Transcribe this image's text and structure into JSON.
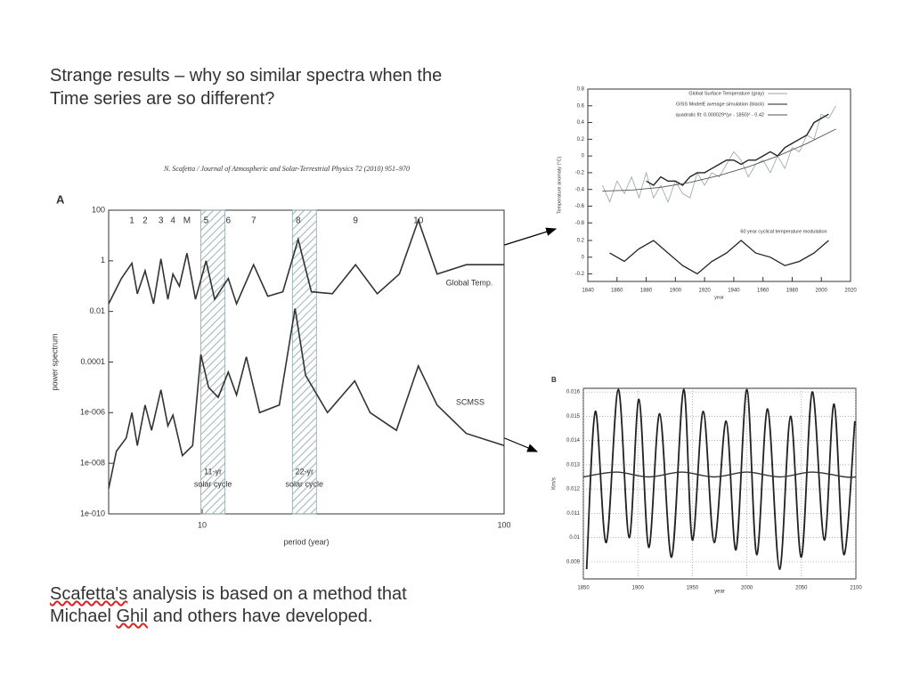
{
  "slide": {
    "title": [
      "Strange results – why so similar spectra when the",
      "Time series are so different?"
    ],
    "footer": [
      [
        "Scafetta's",
        " analysis is based on a method that"
      ],
      [
        "Michael ",
        "Ghil",
        " and others have developed."
      ]
    ]
  },
  "chart_data": [
    {
      "type": "line",
      "source": "N. Scafetta / Journal of Atmospheric and Solar-Terrestrial Physics 72 (2010) 951–970",
      "panel_label": "A",
      "xlabel": "period (year)",
      "ylabel": "power spectrum",
      "xlog": true,
      "ylog": true,
      "xlim": [
        4.9,
        100
      ],
      "ylim": [
        1e-10,
        100
      ],
      "xticks": [
        10,
        100
      ],
      "yticks": [
        100,
        1,
        0.01,
        0.0001,
        {
          "value": 1e-06,
          "label": "1e-006"
        },
        {
          "value": 1e-08,
          "label": "1e-008"
        },
        {
          "value": 1e-10,
          "label": "1e-010"
        }
      ],
      "peaks": [
        {
          "label": "1",
          "x": 5.85
        },
        {
          "label": "2",
          "x": 6.47
        },
        {
          "label": "3",
          "x": 7.3
        },
        {
          "label": "4",
          "x": 8.0
        },
        {
          "label": "M",
          "x": 8.9
        },
        {
          "label": "5",
          "x": 10.3
        },
        {
          "label": "6",
          "x": 12.2
        },
        {
          "label": "7",
          "x": 14.8
        },
        {
          "label": "8",
          "x": 20.8
        },
        {
          "label": "9",
          "x": 32.2
        },
        {
          "label": "10",
          "x": 52
        }
      ],
      "bands": [
        {
          "label": [
            "11-yr",
            "solar cycle"
          ],
          "range": [
            9.9,
            11.9
          ]
        },
        {
          "label": [
            "22-yr",
            "solar cycle"
          ],
          "range": [
            19.9,
            23.9
          ]
        }
      ],
      "series": [
        {
          "name": "Global Temp.",
          "color": "#333333",
          "x": [
            4.9,
            5.4,
            5.85,
            6.1,
            6.47,
            6.9,
            7.3,
            7.7,
            8.0,
            8.4,
            8.9,
            9.5,
            10.3,
            11,
            12.2,
            13,
            14.8,
            16.5,
            18.5,
            20.8,
            23,
            27,
            32.2,
            38,
            45,
            52,
            60,
            75,
            100
          ],
          "values": [
            0.02,
            0.2,
            0.8,
            0.05,
            0.4,
            0.02,
            1.2,
            0.03,
            0.3,
            0.1,
            2,
            0.03,
            1,
            0.03,
            0.2,
            0.02,
            0.7,
            0.04,
            0.06,
            7,
            0.06,
            0.05,
            0.7,
            0.05,
            0.3,
            40,
            0.3,
            0.7,
            0.7
          ]
        },
        {
          "name": "SCMSS",
          "color": "#333333",
          "x": [
            4.9,
            5.2,
            5.6,
            5.85,
            6.1,
            6.47,
            6.8,
            7.3,
            7.7,
            8.0,
            8.6,
            9.3,
            9.9,
            10.5,
            11.3,
            12.2,
            13,
            14,
            15.5,
            18,
            20.3,
            22,
            26,
            32,
            36,
            44,
            52,
            60,
            75,
            100
          ],
          "values": [
            1e-09,
            3e-08,
            1e-07,
            1e-06,
            5e-08,
            2e-06,
            2e-07,
            8e-06,
            3e-07,
            8e-07,
            2e-08,
            5e-08,
            0.0002,
            1e-05,
            4e-06,
            4e-05,
            5e-06,
            0.00016,
            1e-06,
            2e-06,
            0.013,
            3e-05,
            1e-06,
            1.8e-05,
            1e-06,
            2e-07,
            7e-05,
            2e-06,
            1.5e-07,
            5e-08
          ]
        }
      ]
    },
    {
      "type": "line",
      "xlabel": "year",
      "ylabel": "Temperature anomaly (°C)",
      "xlim": [
        1840,
        2020
      ],
      "ylim": [
        -1.5,
        0.8
      ],
      "y2lim": [
        -0.29,
        2.01
      ],
      "xticks": [
        1840,
        1860,
        1880,
        1900,
        1920,
        1940,
        1960,
        1980,
        2000,
        2020
      ],
      "yticks": [
        -0.8,
        -0.6,
        -0.4,
        -0.2,
        0,
        0.2,
        0.4,
        0.6,
        0.8
      ],
      "y2ticks": [
        -0.2,
        0,
        0.2
      ],
      "series": [
        {
          "name": "Global Surface Temperature (gray)",
          "color": "#93a5a0",
          "x": [
            1850,
            1855,
            1860,
            1865,
            1870,
            1875,
            1880,
            1885,
            1890,
            1895,
            1900,
            1905,
            1910,
            1915,
            1920,
            1925,
            1930,
            1935,
            1940,
            1945,
            1950,
            1955,
            1960,
            1965,
            1970,
            1975,
            1980,
            1985,
            1990,
            1995,
            2000,
            2005,
            2010
          ],
          "values": [
            -0.35,
            -0.55,
            -0.3,
            -0.45,
            -0.25,
            -0.5,
            -0.2,
            -0.5,
            -0.35,
            -0.55,
            -0.3,
            -0.45,
            -0.5,
            -0.2,
            -0.35,
            -0.2,
            -0.25,
            -0.1,
            0.05,
            -0.05,
            -0.25,
            -0.1,
            -0.05,
            -0.2,
            0,
            -0.15,
            0.1,
            0.05,
            0.25,
            0.2,
            0.5,
            0.45,
            0.6
          ]
        },
        {
          "name": "GISS ModelE average simulation (black)",
          "color": "#222222",
          "x": [
            1880,
            1885,
            1890,
            1895,
            1900,
            1905,
            1910,
            1915,
            1920,
            1925,
            1930,
            1935,
            1940,
            1945,
            1950,
            1955,
            1960,
            1965,
            1970,
            1975,
            1980,
            1985,
            1990,
            1995,
            2000,
            2005
          ],
          "values": [
            -0.3,
            -0.35,
            -0.25,
            -0.3,
            -0.3,
            -0.35,
            -0.25,
            -0.2,
            -0.2,
            -0.15,
            -0.1,
            -0.05,
            -0.05,
            -0.1,
            -0.05,
            -0.05,
            0,
            0.05,
            0,
            0.1,
            0.15,
            0.2,
            0.25,
            0.4,
            0.45,
            0.5
          ]
        },
        {
          "name": "quadratic fit: 0.000029*(yr - 1850)² - 0.42",
          "color": "#555555",
          "x": [
            1850,
            1870,
            1890,
            1910,
            1930,
            1950,
            1970,
            1990,
            2010
          ],
          "values": [
            -0.42,
            -0.408,
            -0.374,
            -0.316,
            -0.234,
            -0.13,
            -0.002,
            0.148,
            0.322
          ]
        },
        {
          "name": "60 year cyclical temperature modulation",
          "color": "#222222",
          "axis": "y2",
          "x": [
            1855,
            1865,
            1875,
            1885,
            1895,
            1905,
            1915,
            1925,
            1935,
            1945,
            1955,
            1965,
            1975,
            1985,
            1995,
            2005
          ],
          "values": [
            0.05,
            -0.05,
            0.1,
            0.2,
            0.05,
            -0.1,
            -0.2,
            -0.05,
            0.05,
            0.2,
            0.05,
            0,
            -0.1,
            -0.05,
            0.05,
            0.2
          ]
        }
      ]
    },
    {
      "type": "line",
      "panel_label": "B",
      "xlabel": "year",
      "ylabel": "Km/s",
      "grid": true,
      "xlim": [
        1850,
        2100
      ],
      "ylim": [
        0.0083,
        0.01615
      ],
      "xticks": [
        1850,
        1900,
        1950,
        2000,
        2050,
        2100
      ],
      "yticks": [
        0.009,
        0.01,
        0.011,
        0.012,
        0.013,
        0.014,
        0.015,
        0.016
      ],
      "series": [
        {
          "color": "#222222",
          "x": [
            1853,
            1861,
            1871,
            1882,
            1892,
            1901,
            1910,
            1920,
            1931,
            1942,
            1950,
            1960,
            1970,
            1981,
            1990,
            2000,
            2009,
            2019,
            2030,
            2040,
            2050,
            2060,
            2071,
            2080,
            2089,
            2099
          ],
          "values": [
            0.0087,
            0.0152,
            0.0098,
            0.0161,
            0.01,
            0.0157,
            0.0096,
            0.0151,
            0.0092,
            0.0161,
            0.0099,
            0.0152,
            0.0098,
            0.0148,
            0.0095,
            0.0161,
            0.0093,
            0.0153,
            0.0087,
            0.015,
            0.0092,
            0.016,
            0.0099,
            0.0155,
            0.0093,
            0.0148
          ]
        },
        {
          "color": "#333333",
          "x": [
            1850,
            1880,
            1910,
            1940,
            1970,
            2000,
            2030,
            2060,
            2090,
            2100
          ],
          "values": [
            0.0125,
            0.0127,
            0.0125,
            0.0127,
            0.0125,
            0.0127,
            0.0125,
            0.0127,
            0.0125,
            0.0125
          ]
        }
      ]
    }
  ]
}
